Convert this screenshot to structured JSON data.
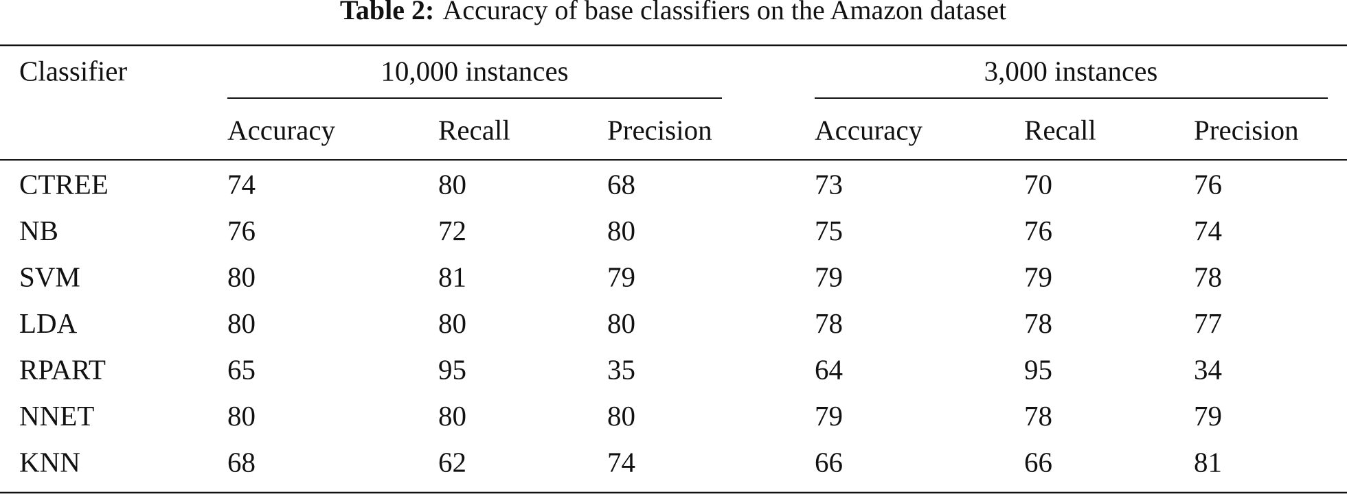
{
  "caption": {
    "label": "Table 2:",
    "text": "Accuracy of base classifiers on the Amazon dataset"
  },
  "table": {
    "first_header": "Classifier",
    "groups": [
      "10,000 instances",
      "3,000 instances"
    ],
    "subheaders": [
      "Accuracy",
      "Recall",
      "Precision",
      "Accuracy",
      "Recall",
      "Precision"
    ],
    "rows": [
      [
        "CTREE",
        74,
        80,
        68,
        73,
        70,
        76
      ],
      [
        "NB",
        76,
        72,
        80,
        75,
        76,
        74
      ],
      [
        "SVM",
        80,
        81,
        79,
        79,
        79,
        78
      ],
      [
        "LDA",
        80,
        80,
        80,
        78,
        78,
        77
      ],
      [
        "RPART",
        65,
        95,
        35,
        64,
        95,
        34
      ],
      [
        "NNET",
        80,
        80,
        80,
        79,
        78,
        79
      ],
      [
        "KNN",
        68,
        62,
        74,
        66,
        66,
        81
      ]
    ]
  }
}
